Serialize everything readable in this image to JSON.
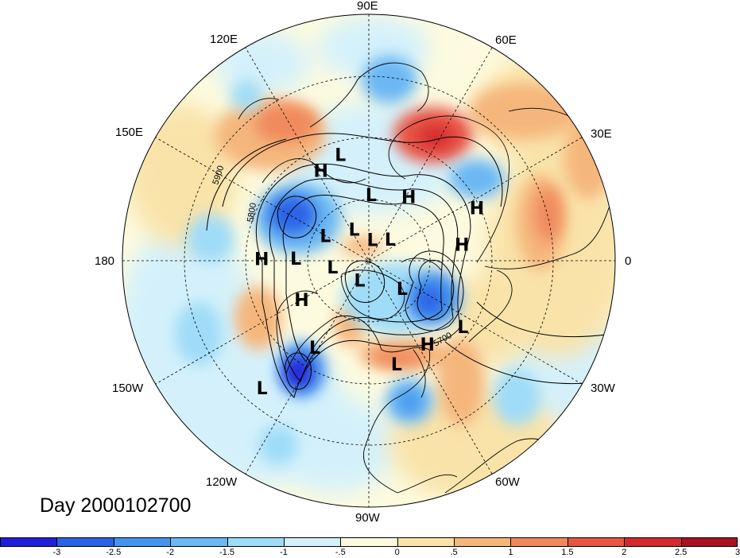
{
  "title": "Day 2000102700",
  "longitude_labels": {
    "lon_90e": "90E",
    "lon_60e": "60E",
    "lon_30e": "30E",
    "lon_0": "0",
    "lon_30w": "30W",
    "lon_60w": "60W",
    "lon_90w": "90W",
    "lon_120w": "120W",
    "lon_150w": "150W",
    "lon_180": "180",
    "lon_150e": "150E",
    "lon_120e": "120E"
  },
  "contour_labels": [
    "5900",
    "5800",
    "5700"
  ],
  "pressure_centers": [
    {
      "type": "L",
      "lon": 105,
      "lat": 42
    },
    {
      "type": "H",
      "lon": 118,
      "lat": 45
    },
    {
      "type": "L",
      "lon": 88,
      "lat": 60
    },
    {
      "type": "H",
      "lon": 58,
      "lat": 56
    },
    {
      "type": "H",
      "lon": 26,
      "lat": 38
    },
    {
      "type": "H",
      "lon": 10,
      "lat": 48
    },
    {
      "type": "L",
      "lon": 150,
      "lat": 67
    },
    {
      "type": "L",
      "lon": 115,
      "lat": 74
    },
    {
      "type": "L",
      "lon": 80,
      "lat": 80
    },
    {
      "type": "L",
      "lon": 45,
      "lat": 76
    },
    {
      "type": "L",
      "lon": 178,
      "lat": 57
    },
    {
      "type": "H",
      "lon": 179,
      "lat": 43
    },
    {
      "type": "L",
      "lon": 190,
      "lat": 73
    },
    {
      "type": "L",
      "lon": -115,
      "lat": 80
    },
    {
      "type": "L",
      "lon": -40,
      "lat": 70
    },
    {
      "type": "H",
      "lon": -150,
      "lat": 55
    },
    {
      "type": "L",
      "lon": -122,
      "lat": 45
    },
    {
      "type": "L",
      "lon": -75,
      "lat": 43
    },
    {
      "type": "H",
      "lon": -55,
      "lat": 45
    },
    {
      "type": "L",
      "lon": -35,
      "lat": 40
    },
    {
      "type": "L",
      "lon": -130,
      "lat": 22
    }
  ],
  "colorbar": {
    "colors": [
      "#2020d8",
      "#2b63e6",
      "#4595ee",
      "#6ab8f4",
      "#9fdcf8",
      "#d4f1fb",
      "#fdfbdf",
      "#f9e3a9",
      "#f5b67b",
      "#f08a5d",
      "#e85545",
      "#d42a2e",
      "#a61420"
    ],
    "tick_labels": [
      "-3",
      "-2.5",
      "-2",
      "-1.5",
      "-1",
      "-.5",
      "0",
      ".5",
      "1",
      "1.5",
      "2",
      "2.5",
      "3"
    ]
  }
}
